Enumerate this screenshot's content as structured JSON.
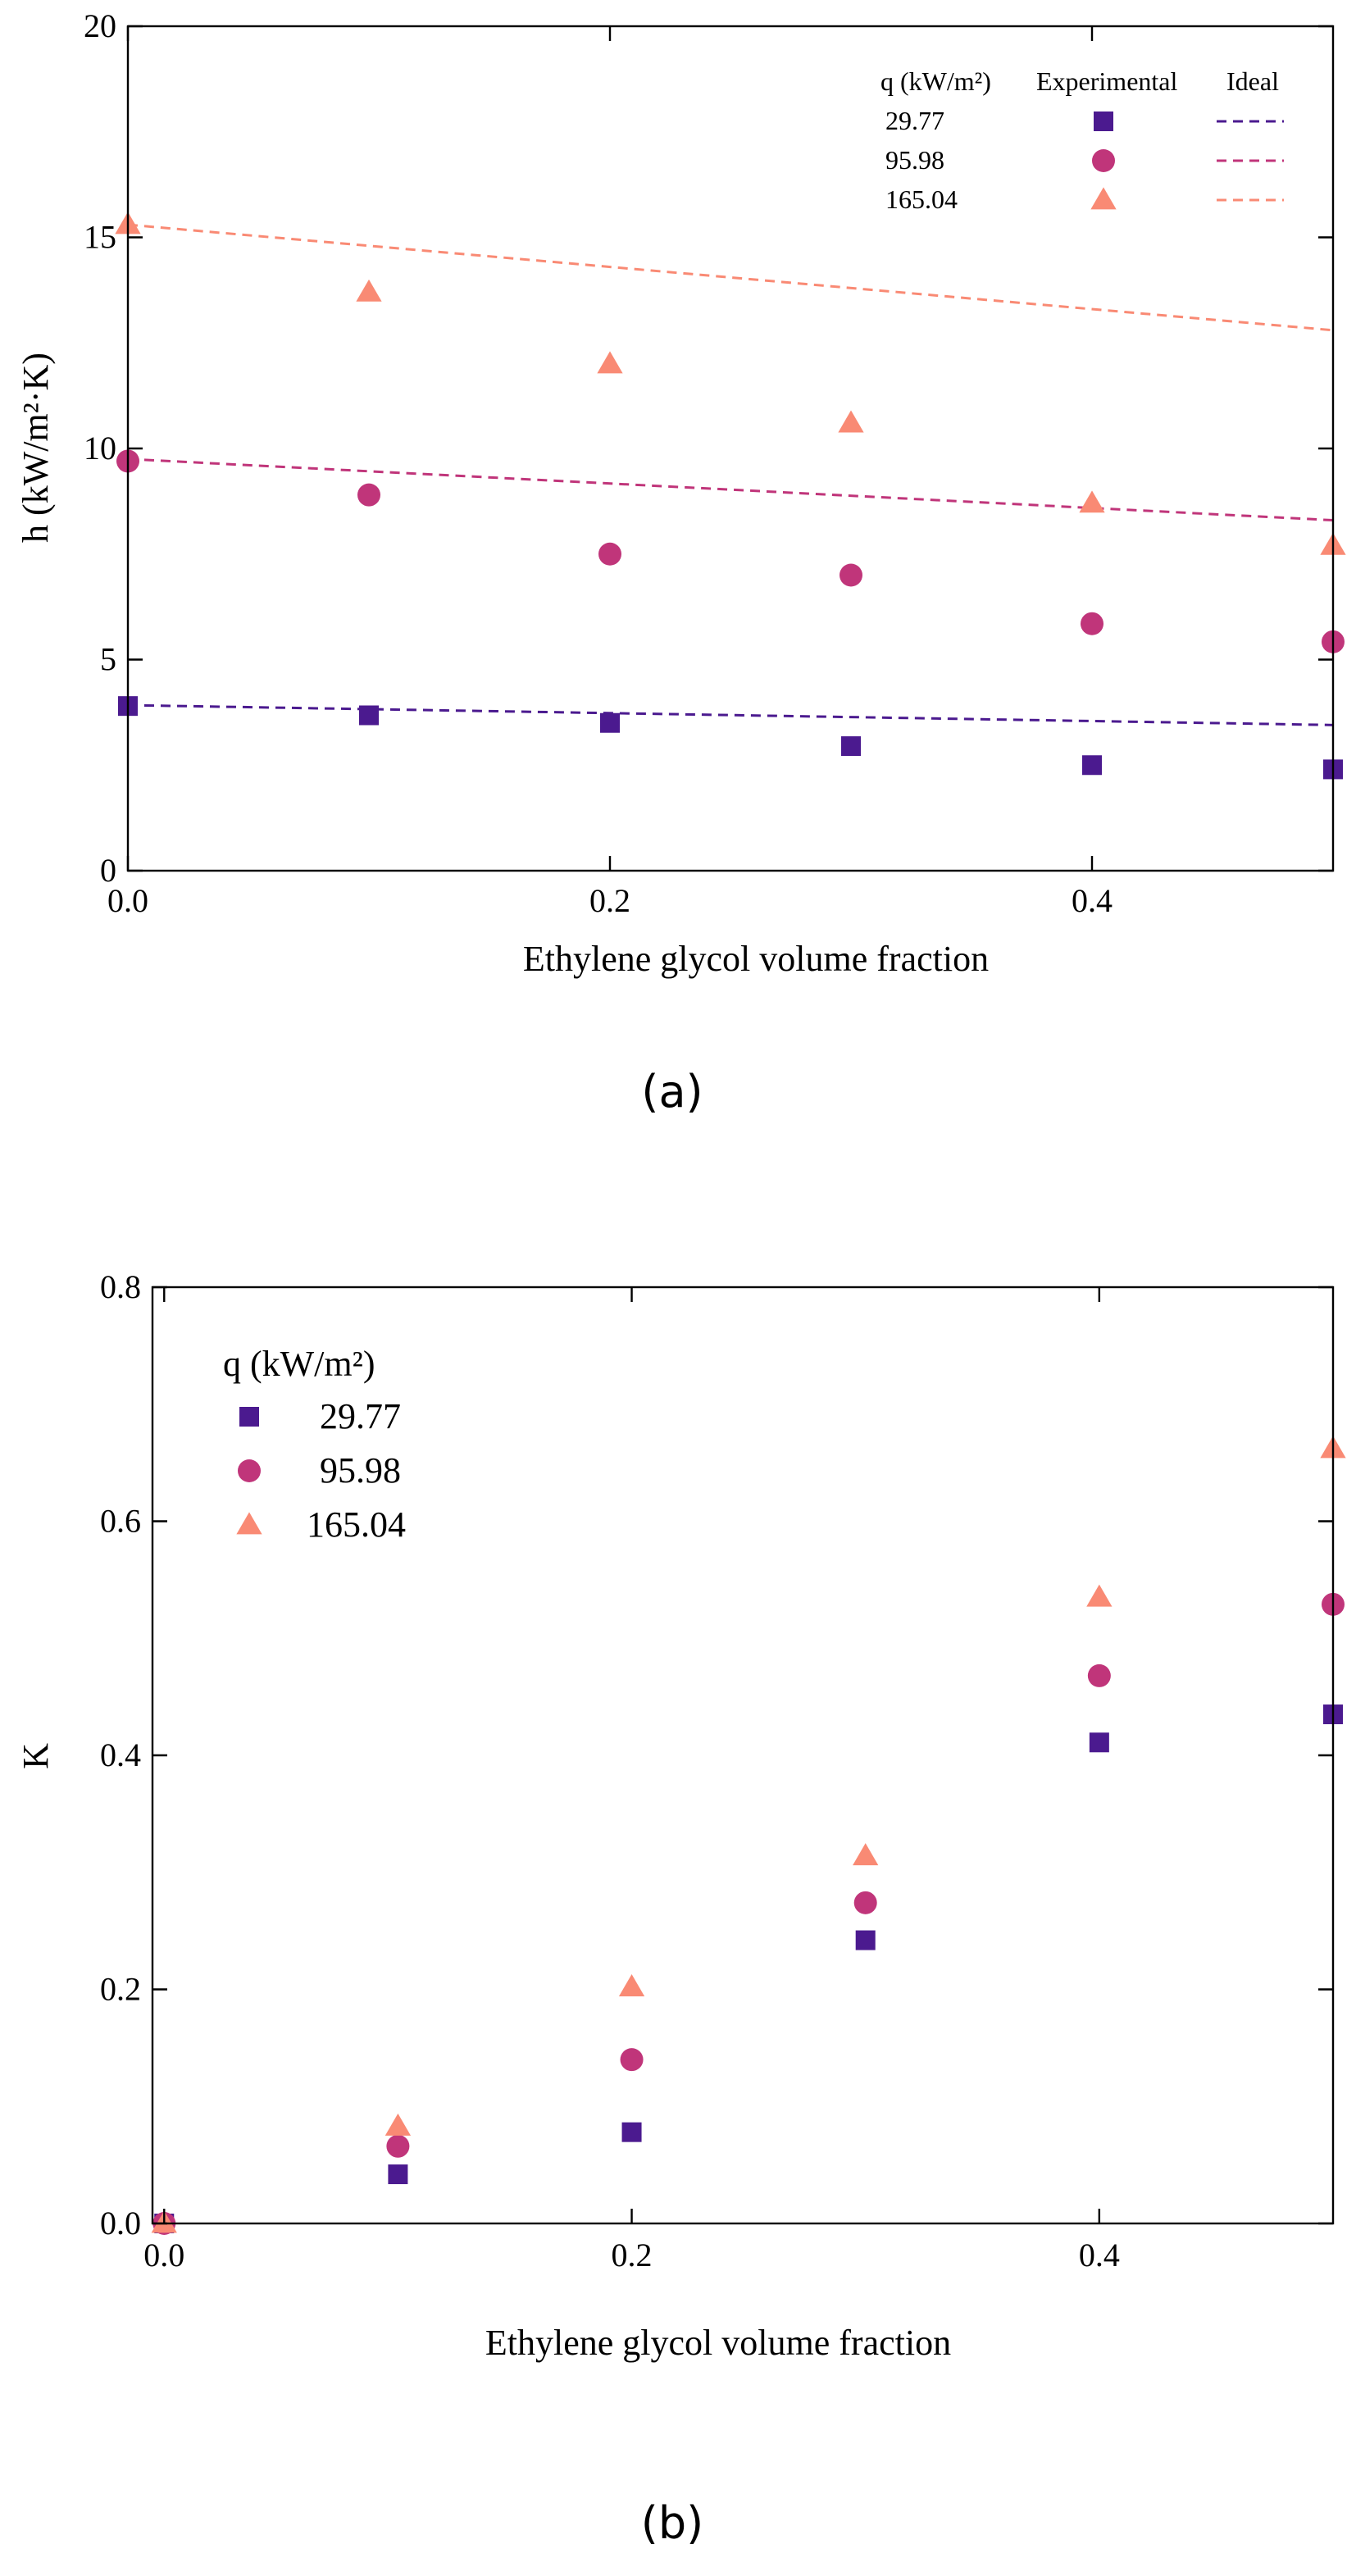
{
  "colors": {
    "q29": "#4b1a8f",
    "q95": "#c0357a",
    "q165": "#f98a74"
  },
  "chart_data": [
    {
      "id": "a",
      "type": "scatter",
      "panel_label": "(a)",
      "xlabel": "Ethylene glycol volume fraction",
      "ylabel": "h (kW/m²·K)",
      "xlim": [
        0,
        0.5
      ],
      "ylim": [
        0,
        20
      ],
      "xticks": [
        0.0,
        0.2,
        0.4
      ],
      "xtick_labels": [
        "0.0",
        "0.2",
        "0.4"
      ],
      "yticks": [
        0,
        5,
        10,
        15,
        20
      ],
      "ytick_labels": [
        "0",
        "5",
        "10",
        "15",
        "20"
      ],
      "grid": false,
      "legend": {
        "position": "top-right",
        "header_q": "q (kW/m²)",
        "header_experimental": "Experimental",
        "header_ideal": "Ideal"
      },
      "series": [
        {
          "name": "29.77",
          "color_key": "q29",
          "marker": "square",
          "x": [
            0.0,
            0.1,
            0.2,
            0.3,
            0.4,
            0.5
          ],
          "values": [
            3.9,
            3.68,
            3.5,
            2.95,
            2.5,
            2.4
          ],
          "ideal": {
            "x": [
              0.0,
              0.5
            ],
            "y": [
              3.92,
              3.45
            ]
          }
        },
        {
          "name": "95.98",
          "color_key": "q95",
          "marker": "circle",
          "x": [
            0.0,
            0.1,
            0.2,
            0.3,
            0.4,
            0.5
          ],
          "values": [
            9.7,
            8.9,
            7.5,
            7.0,
            5.85,
            5.42
          ],
          "ideal": {
            "x": [
              0.0,
              0.5
            ],
            "y": [
              9.75,
              8.3
            ]
          }
        },
        {
          "name": "165.04",
          "color_key": "q165",
          "marker": "triangle",
          "x": [
            0.0,
            0.1,
            0.2,
            0.3,
            0.4,
            0.5
          ],
          "values": [
            15.3,
            13.7,
            12.0,
            10.6,
            8.7,
            7.7
          ],
          "ideal": {
            "x": [
              0.0,
              0.5
            ],
            "y": [
              15.3,
              12.8
            ]
          }
        }
      ]
    },
    {
      "id": "b",
      "type": "scatter",
      "panel_label": "(b)",
      "xlabel": "Ethylene glycol volume fraction",
      "ylabel": "K",
      "xlim": [
        -0.005,
        0.5
      ],
      "ylim": [
        0,
        0.8
      ],
      "xticks": [
        0.0,
        0.2,
        0.4
      ],
      "xtick_labels": [
        "0.0",
        "0.2",
        "0.4"
      ],
      "yticks": [
        0.0,
        0.2,
        0.4,
        0.6,
        0.8
      ],
      "ytick_labels": [
        "0.0",
        "0.2",
        "0.4",
        "0.6",
        "0.8"
      ],
      "grid": false,
      "legend": {
        "position": "top-left",
        "header_q": "q (kW/m²)"
      },
      "series": [
        {
          "name": "29.77",
          "color_key": "q29",
          "marker": "square",
          "x": [
            0.0,
            0.1,
            0.2,
            0.3,
            0.4,
            0.5
          ],
          "values": [
            0.0,
            0.042,
            0.078,
            0.242,
            0.411,
            0.435
          ]
        },
        {
          "name": "95.98",
          "color_key": "q95",
          "marker": "circle",
          "x": [
            0.0,
            0.1,
            0.2,
            0.3,
            0.4,
            0.5
          ],
          "values": [
            0.0,
            0.066,
            0.14,
            0.274,
            0.468,
            0.529
          ]
        },
        {
          "name": "165.04",
          "color_key": "q165",
          "marker": "triangle",
          "x": [
            0.0,
            0.1,
            0.2,
            0.3,
            0.4,
            0.5
          ],
          "values": [
            0.0,
            0.083,
            0.202,
            0.314,
            0.535,
            0.662
          ]
        }
      ]
    }
  ]
}
